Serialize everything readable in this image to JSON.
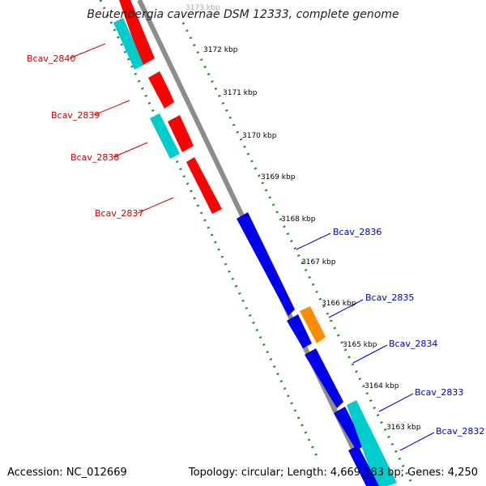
{
  "title": "Beutenbergia cavernae DSM 12333, complete genome",
  "accession": "Accession: NC_012669",
  "topology": "Topology: circular; Length: 4,669,183 bp; Genes: 4,250",
  "colors": {
    "backbone": "#8c8c8c",
    "tick": "#1e8a1e",
    "forward_gene": "#0000ee",
    "reverse_gene": "#ff0000",
    "cds": "#00cccc",
    "highlight_gene": "#ff8c00",
    "forward_label": "#0000cc",
    "reverse_label": "#cc0000"
  },
  "tick_labels": [
    {
      "text": "3173 kbp"
    },
    {
      "text": "3172 kbp"
    },
    {
      "text": "3171 kbp"
    },
    {
      "text": "3170 kbp"
    },
    {
      "text": "3169 kbp"
    },
    {
      "text": "3168 kbp"
    },
    {
      "text": "3167 kbp"
    },
    {
      "text": "3166 kbp"
    },
    {
      "text": "3165 kbp"
    },
    {
      "text": "3164 kbp"
    },
    {
      "text": "3163 kbp"
    }
  ],
  "genes_reverse": [
    {
      "label": "Bcav_2840"
    },
    {
      "label": "Bcav_2839"
    },
    {
      "label": "Bcav_2838"
    },
    {
      "label": "Bcav_2837"
    }
  ],
  "genes_forward": [
    {
      "label": "Bcav_2836"
    },
    {
      "label": "Bcav_2835"
    },
    {
      "label": "Bcav_2834"
    },
    {
      "label": "Bcav_2833"
    },
    {
      "label": "Bcav_2832"
    }
  ]
}
